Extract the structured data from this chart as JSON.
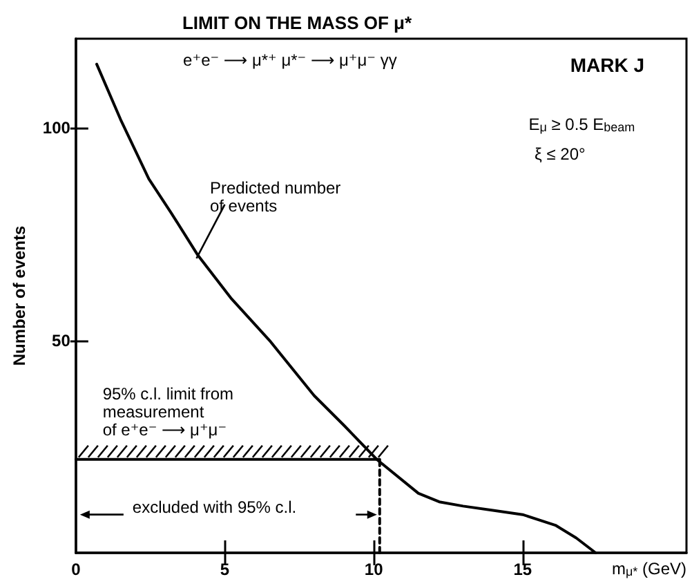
{
  "chart_data": {
    "type": "line",
    "title": "LIMIT ON THE MASS OF μ*",
    "xlabel": "m$_{μ*}$ (GeV)",
    "ylabel": "Number of events",
    "xlim": [
      0,
      20.5
    ],
    "xticks": [
      0,
      5,
      10,
      15
    ],
    "ylim": [
      0,
      121
    ],
    "yticks": [
      50,
      100
    ],
    "marker": "none",
    "series": [
      {
        "color": "#000000",
        "line_style": "solid",
        "x": [
          0.7,
          1.5,
          2.45,
          3.2,
          4.1,
          5.2,
          6.5,
          8,
          9,
          10.1,
          11.5,
          12.2,
          13,
          14,
          15,
          16.1,
          16.8,
          17.45
        ],
        "values": [
          115,
          102,
          88,
          80,
          70,
          60,
          50,
          37,
          30,
          22,
          14,
          12,
          11,
          10,
          9,
          6.5,
          3.5,
          0
        ]
      },
      {
        "color": "#000000",
        "line_style": "solid",
        "x": [
          0,
          10.2
        ],
        "values": [
          22,
          22
        ]
      },
      {
        "color": "#000000",
        "line_style": "dashed",
        "x": [
          10.2,
          10.2
        ],
        "values": [
          0,
          22
        ]
      }
    ],
    "annotations": [
      "e⁺e⁻ ⟶ μ*⁺ μ*⁻ ⟶ μ⁺μ⁻ γγ",
      "MARK J",
      "E$_{μ}$ ≥ 0.5 E$_{beam}$",
      "ξ ≤ 20°",
      "Predicted number\nof events",
      "95% c.l. limit from\nmeasurement\nof e⁺e⁻ ⟶ μ⁺μ⁻",
      "excluded with 95% c.l."
    ]
  }
}
